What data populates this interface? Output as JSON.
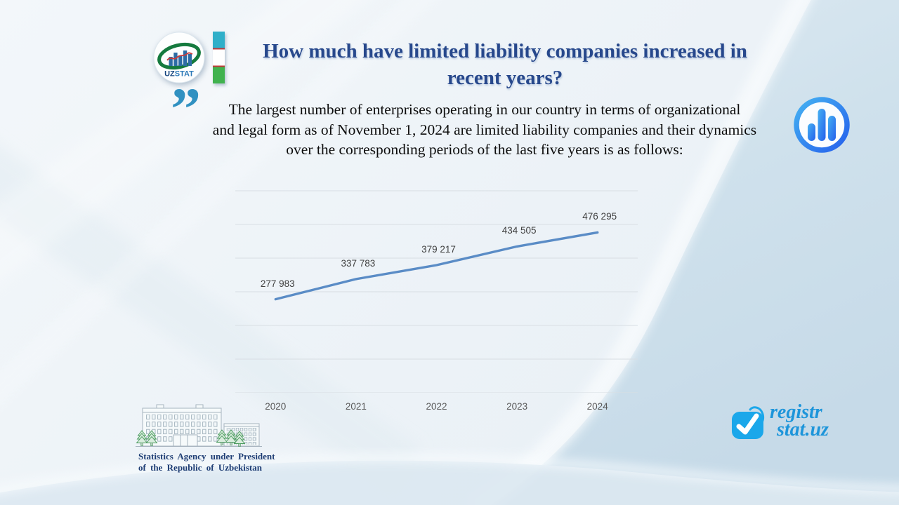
{
  "brand": {
    "logo_text_uz": "UZ",
    "logo_text_stat": "STAT"
  },
  "header": {
    "title_lines": [
      "How much have limited liability companies increased in",
      "recent years?"
    ],
    "title_color": "#27488c"
  },
  "quote": {
    "mark": "”",
    "lines": [
      "The largest number of enterprises operating in our country in terms of organizational",
      "and legal form as of November 1, 2024 are limited liability companies and their dynamics",
      "over the corresponding periods of the last five years is as follows:"
    ]
  },
  "chart_data": {
    "type": "line",
    "categories": [
      "2020",
      "2021",
      "2022",
      "2023",
      "2024"
    ],
    "values": [
      277983,
      337783,
      379217,
      434505,
      476295
    ],
    "data_labels": [
      "277 983",
      "337 783",
      "379 217",
      "434 505",
      "476 295"
    ],
    "title": "",
    "xlabel": "",
    "ylabel": "",
    "ylim": [
      0,
      600000
    ],
    "gridline_step": 100000,
    "grid": true,
    "legend": "none",
    "line_color": "#5a8cc6",
    "gridline_color": "#d8dee3",
    "label_color": "#404040",
    "axis_label_color": "#595959"
  },
  "footer": {
    "agency_lines": [
      "Statistics Agency under President",
      "of the Republic of Uzbekistan"
    ],
    "site_logo_lines": [
      "registr",
      "stat.uz"
    ]
  },
  "colors": {
    "accent_blue": "#2f7bd0",
    "flag_blue": "#2fafc9",
    "flag_green": "#41b24e",
    "quote_blue": "#3191c1",
    "site_blue": "#1d95da"
  }
}
